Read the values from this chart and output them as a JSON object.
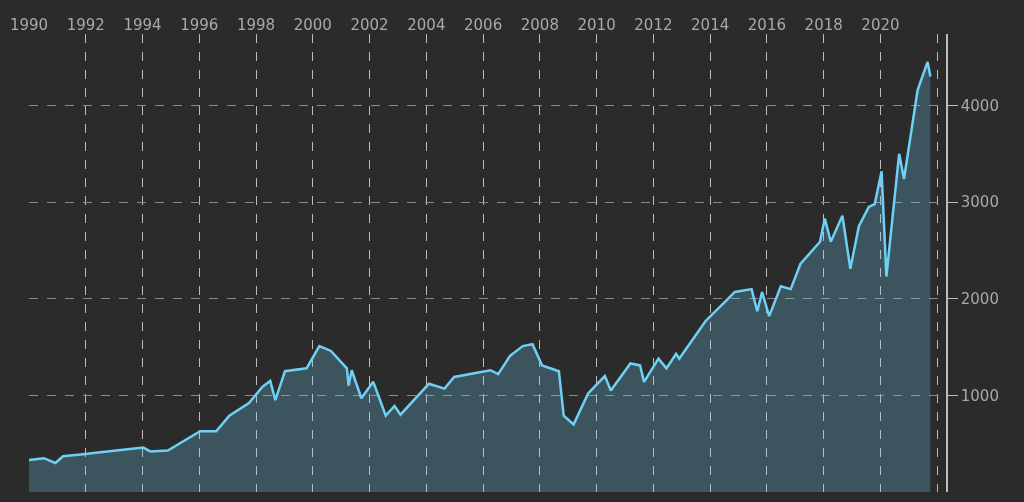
{
  "chart_data": {
    "type": "area",
    "x": [
      1990.0,
      1990.52,
      1990.93,
      1991.2,
      1991.9,
      1993.07,
      1994.03,
      1994.27,
      1994.89,
      1996.03,
      1996.6,
      1997.06,
      1997.75,
      1998.23,
      1998.5,
      1998.68,
      1999.02,
      1999.78,
      2000.23,
      2000.64,
      2001.2,
      2001.26,
      2001.37,
      2001.71,
      2002.13,
      2002.57,
      2002.88,
      2003.09,
      2004.09,
      2004.64,
      2004.98,
      2006.26,
      2006.53,
      2006.95,
      2007.4,
      2007.74,
      2008.08,
      2008.67,
      2008.84,
      2009.19,
      2009.7,
      2010.29,
      2010.5,
      2011.19,
      2011.53,
      2011.67,
      2012.18,
      2012.46,
      2012.8,
      2012.91,
      2013.84,
      2014.53,
      2014.87,
      2015.46,
      2015.66,
      2015.83,
      2016.08,
      2016.49,
      2016.84,
      2017.18,
      2017.87,
      2018.04,
      2018.25,
      2018.66,
      2018.94,
      2019.24,
      2019.59,
      2019.8,
      2020.04,
      2020.21,
      2020.45,
      2020.66,
      2020.83,
      2021.31,
      2021.66,
      2021.76
    ],
    "series": [
      {
        "color": "#6fd0f5",
        "values": [
          330,
          350,
          300,
          370,
          390,
          430,
          460,
          420,
          430,
          630,
          630,
          790,
          920,
          1090,
          1150,
          950,
          1250,
          1280,
          1510,
          1460,
          1280,
          1100,
          1260,
          970,
          1140,
          790,
          890,
          800,
          1120,
          1070,
          1190,
          1260,
          1220,
          1410,
          1510,
          1530,
          1310,
          1250,
          790,
          700,
          1020,
          1200,
          1050,
          1330,
          1310,
          1140,
          1380,
          1280,
          1430,
          1380,
          1770,
          1970,
          2070,
          2100,
          1870,
          2070,
          1820,
          2130,
          2100,
          2360,
          2590,
          2830,
          2590,
          2860,
          2310,
          2750,
          2950,
          2980,
          3320,
          2230,
          2910,
          3500,
          3240,
          4160,
          4450,
          4300
        ]
      }
    ],
    "xlim": [
      1990,
      2022.31
    ],
    "xticks": [
      1990,
      1992,
      1994,
      1996,
      1998,
      2000,
      2002,
      2004,
      2006,
      2008,
      2010,
      2012,
      2014,
      2016,
      2018,
      2020,
      {
        "value": 2022,
        "label": null
      }
    ],
    "ylim": [
      0,
      4740
    ],
    "yticks": [
      1000,
      2000,
      3000,
      4000
    ],
    "grid": true,
    "line_style": "solid",
    "marker": "none"
  }
}
